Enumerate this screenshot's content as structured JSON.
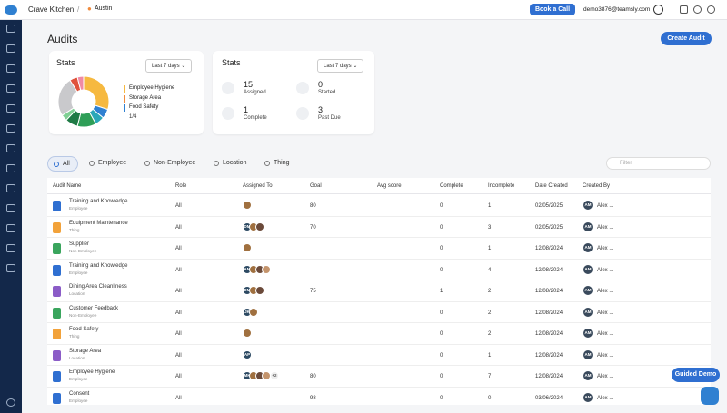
{
  "topbar": {
    "brand": "Crave Kitchen",
    "separator": "/",
    "location": "Austin",
    "book_button": "Book a Call",
    "email": "demo3876@teamsly.com"
  },
  "page": {
    "title": "Audits",
    "create_button": "Create Audit"
  },
  "stats_chart": {
    "title": "Stats",
    "range": "Last 7 days",
    "segments": [
      {
        "value": 30,
        "color": "#f6b940"
      },
      {
        "value": 6,
        "color": "#2f80d1"
      },
      {
        "value": 6,
        "color": "#2aa7b8"
      },
      {
        "value": 12,
        "color": "#2e9e57"
      },
      {
        "value": 8,
        "color": "#1f7a45"
      },
      {
        "value": 4,
        "color": "#7fcf93"
      },
      {
        "value": 25,
        "color": "#c9c9cc"
      },
      {
        "value": 5,
        "color": "#e0533d"
      },
      {
        "value": 4,
        "color": "#f08aa4"
      }
    ],
    "legend": [
      {
        "name": "Employee Hygiene",
        "color": "#f6b940"
      },
      {
        "name": "Storage Area",
        "color": "#f08a3c"
      },
      {
        "name": "Food Safety",
        "color": "#2f80d1"
      }
    ],
    "pager": "1/4"
  },
  "stats_summary": {
    "title": "Stats",
    "range": "Last 7 days",
    "items": [
      {
        "value": "15",
        "label": "Assigned"
      },
      {
        "value": "0",
        "label": "Started"
      },
      {
        "value": "1",
        "label": "Complete"
      },
      {
        "value": "3",
        "label": "Past Due"
      }
    ]
  },
  "tabs": [
    "All",
    "Employee",
    "Non-Employee",
    "Location",
    "Thing"
  ],
  "filter_placeholder": "Filter",
  "table": {
    "columns": [
      "Audit Name",
      "Role",
      "Assigned To",
      "Goal",
      "Avg score",
      "Complete",
      "Incomplete",
      "Date Created",
      "Created By"
    ],
    "rows": [
      {
        "name": "Training and Knowledge",
        "type": "Employee",
        "icon_color": "#2f6fd1",
        "role": "All",
        "assigned": {
          "initials": [],
          "photos": 1
        },
        "goal": "80",
        "complete": "0",
        "incomplete": "1",
        "date": "02/05/2025",
        "creator_initials": "AM",
        "creator": "Alex ..."
      },
      {
        "name": "Equipment Maintenance",
        "type": "Thing",
        "icon_color": "#f2a23a",
        "role": "All",
        "assigned": {
          "initials": [
            "DM"
          ],
          "photos": 2
        },
        "goal": "70",
        "complete": "0",
        "incomplete": "3",
        "date": "02/05/2025",
        "creator_initials": "AM",
        "creator": "Alex ..."
      },
      {
        "name": "Supplier",
        "type": "Non-Employee",
        "icon_color": "#3aa55d",
        "role": "All",
        "assigned": {
          "initials": [],
          "photos": 1
        },
        "goal": null,
        "complete": "0",
        "incomplete": "1",
        "date": "12/08/2024",
        "creator_initials": "AM",
        "creator": "Alex ..."
      },
      {
        "name": "Training and Knowledge",
        "type": "Employee",
        "icon_color": "#2f6fd1",
        "role": "All",
        "assigned": {
          "initials": [
            "AM"
          ],
          "photos": 3
        },
        "goal": null,
        "complete": "0",
        "incomplete": "4",
        "date": "12/08/2024",
        "creator_initials": "AM",
        "creator": "Alex ..."
      },
      {
        "name": "Dining Area Cleanliness",
        "type": "Location",
        "icon_color": "#8b5cc7",
        "role": "All",
        "assigned": {
          "initials": [
            "DM"
          ],
          "photos": 2
        },
        "goal": "75",
        "complete": "1",
        "incomplete": "2",
        "date": "12/08/2024",
        "creator_initials": "AM",
        "creator": "Alex ..."
      },
      {
        "name": "Customer Feedback",
        "type": "Non-Employee",
        "icon_color": "#3aa55d",
        "role": "All",
        "assigned": {
          "initials": [
            "JK"
          ],
          "photos": 1
        },
        "goal": null,
        "complete": "0",
        "incomplete": "2",
        "date": "12/08/2024",
        "creator_initials": "AM",
        "creator": "Alex ..."
      },
      {
        "name": "Food Safety",
        "type": "Thing",
        "icon_color": "#f2a23a",
        "role": "All",
        "assigned": {
          "initials": [],
          "photos": 1
        },
        "goal": null,
        "complete": "0",
        "incomplete": "2",
        "date": "12/08/2024",
        "creator_initials": "AM",
        "creator": "Alex ..."
      },
      {
        "name": "Storage Area",
        "type": "Location",
        "icon_color": "#8b5cc7",
        "role": "All",
        "assigned": {
          "initials": [
            "AP"
          ],
          "photos": 0
        },
        "goal": null,
        "complete": "0",
        "incomplete": "1",
        "date": "12/08/2024",
        "creator_initials": "AM",
        "creator": "Alex ..."
      },
      {
        "name": "Employee Hygiene",
        "type": "Employee",
        "icon_color": "#2f6fd1",
        "role": "All",
        "assigned": {
          "initials": [
            "MK"
          ],
          "photos": 3,
          "more": "+2"
        },
        "goal": "80",
        "complete": "0",
        "incomplete": "7",
        "date": "12/08/2024",
        "creator_initials": "AM",
        "creator": "Alex ..."
      },
      {
        "name": "Consent",
        "type": "Employee",
        "icon_color": "#2f6fd1",
        "role": "All",
        "assigned": {
          "initials": [],
          "photos": 0
        },
        "goal": "98",
        "complete": "0",
        "incomplete": "0",
        "date": "03/06/2024",
        "creator_initials": "AM",
        "creator": "Alex ..."
      }
    ]
  },
  "guided_demo": "Guided Demo"
}
